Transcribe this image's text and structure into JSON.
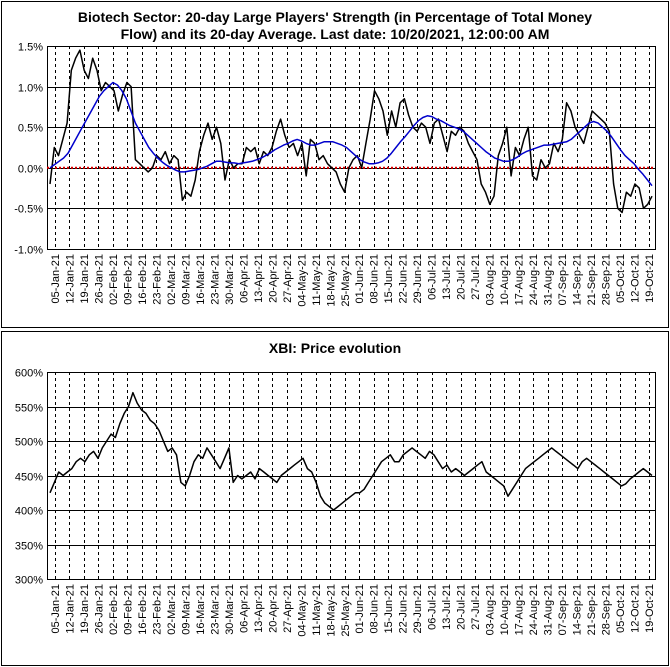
{
  "chart_data": [
    {
      "type": "line",
      "title_line1": "Biotech Sector: 20-day Large Players' Strength (in Percentage of Total Money",
      "title_line2": "Flow) and its 20-day Average. Last date: 10/20/2021, 12:00:00 AM",
      "ylim": [
        -1.0,
        1.5
      ],
      "yticks": [
        -1.0,
        -0.5,
        0.0,
        0.5,
        1.0,
        1.5
      ],
      "ytick_labels": [
        "-1.0%",
        "-0.5%",
        "0.0%",
        "0.5%",
        "1.0%",
        "1.5%"
      ],
      "reference_line": {
        "y": 0.0,
        "color": "#e00000",
        "style": "dotted"
      },
      "x_tick_labels": [
        "05-Jan-21",
        "12-Jan-21",
        "19-Jan-21",
        "26-Jan-21",
        "02-Feb-21",
        "09-Feb-21",
        "16-Feb-21",
        "23-Feb-21",
        "02-Mar-21",
        "09-Mar-21",
        "16-Mar-21",
        "23-Mar-21",
        "30-Mar-21",
        "06-Apr-21",
        "13-Apr-21",
        "20-Apr-21",
        "27-Apr-21",
        "04-May-21",
        "11-May-21",
        "18-May-21",
        "25-May-21",
        "01-Jun-21",
        "08-Jun-21",
        "15-Jun-21",
        "22-Jun-21",
        "29-Jun-21",
        "06-Jul-21",
        "13-Jul-21",
        "20-Jul-21",
        "27-Jul-21",
        "03-Aug-21",
        "10-Aug-21",
        "17-Aug-21",
        "24-Aug-21",
        "31-Aug-21",
        "07-Sep-21",
        "14-Sep-21",
        "21-Sep-21",
        "28-Sep-21",
        "05-Oct-21",
        "12-Oct-21",
        "19-Oct-21"
      ],
      "grid": {
        "horizontal": "solid",
        "vertical": "dashed"
      },
      "series": [
        {
          "color": "#000000",
          "values": [
            -0.2,
            0.25,
            0.15,
            0.35,
            0.55,
            1.2,
            1.35,
            1.45,
            1.2,
            1.1,
            1.35,
            1.2,
            0.95,
            1.05,
            1.0,
            0.95,
            0.7,
            0.9,
            1.05,
            1.0,
            0.1,
            0.05,
            0.0,
            -0.05,
            0.0,
            0.15,
            0.1,
            0.2,
            0.05,
            0.15,
            0.1,
            -0.4,
            -0.3,
            -0.35,
            -0.15,
            0.2,
            0.4,
            0.55,
            0.35,
            0.5,
            0.3,
            -0.15,
            0.1,
            0.0,
            0.05,
            0.05,
            0.25,
            0.2,
            0.25,
            0.05,
            0.2,
            0.15,
            0.25,
            0.45,
            0.6,
            0.4,
            0.25,
            0.3,
            0.15,
            0.3,
            -0.1,
            0.35,
            0.3,
            0.1,
            0.15,
            0.05,
            0.0,
            -0.05,
            -0.2,
            -0.3,
            0.0,
            0.1,
            0.15,
            0.0,
            0.3,
            0.6,
            0.95,
            0.85,
            0.7,
            0.4,
            0.7,
            0.5,
            0.8,
            0.85,
            0.65,
            0.5,
            0.45,
            0.55,
            0.5,
            0.3,
            0.55,
            0.6,
            0.4,
            0.2,
            0.45,
            0.4,
            0.5,
            0.45,
            0.3,
            0.2,
            0.1,
            -0.2,
            -0.3,
            -0.45,
            -0.35,
            0.15,
            0.3,
            0.5,
            -0.1,
            0.25,
            0.15,
            0.35,
            0.5,
            -0.1,
            -0.15,
            0.1,
            0.0,
            0.05,
            0.3,
            0.2,
            0.35,
            0.8,
            0.7,
            0.5,
            0.4,
            0.3,
            0.5,
            0.7,
            0.65,
            0.6,
            0.55,
            0.45,
            -0.2,
            -0.5,
            -0.55,
            -0.3,
            -0.35,
            -0.2,
            -0.25,
            -0.5,
            -0.45,
            -0.35
          ]
        },
        {
          "color": "#0000cc",
          "values": [
            0.0,
            0.04,
            0.08,
            0.12,
            0.18,
            0.28,
            0.38,
            0.48,
            0.58,
            0.68,
            0.78,
            0.88,
            0.95,
            1.0,
            1.05,
            1.02,
            0.95,
            0.85,
            0.7,
            0.55,
            0.45,
            0.35,
            0.25,
            0.18,
            0.12,
            0.07,
            0.03,
            0.0,
            -0.03,
            -0.05,
            -0.05,
            -0.04,
            -0.03,
            -0.02,
            0.0,
            0.02,
            0.05,
            0.08,
            0.08,
            0.07,
            0.06,
            0.06,
            0.05,
            0.06,
            0.07,
            0.08,
            0.1,
            0.12,
            0.15,
            0.18,
            0.22,
            0.25,
            0.28,
            0.3,
            0.33,
            0.35,
            0.33,
            0.3,
            0.28,
            0.28,
            0.3,
            0.32,
            0.32,
            0.32,
            0.3,
            0.28,
            0.25,
            0.2,
            0.15,
            0.1,
            0.07,
            0.05,
            0.05,
            0.06,
            0.08,
            0.12,
            0.18,
            0.25,
            0.32,
            0.38,
            0.45,
            0.52,
            0.58,
            0.62,
            0.64,
            0.63,
            0.6,
            0.58,
            0.55,
            0.52,
            0.5,
            0.48,
            0.45,
            0.4,
            0.35,
            0.3,
            0.25,
            0.2,
            0.16,
            0.12,
            0.1,
            0.08,
            0.08,
            0.1,
            0.13,
            0.17,
            0.2,
            0.22,
            0.24,
            0.26,
            0.28,
            0.28,
            0.29,
            0.3,
            0.31,
            0.32,
            0.35,
            0.4,
            0.45,
            0.5,
            0.55,
            0.57,
            0.55,
            0.5,
            0.45,
            0.38,
            0.3,
            0.22,
            0.15,
            0.1,
            0.05,
            -0.02,
            -0.08,
            -0.15,
            -0.22
          ]
        }
      ]
    },
    {
      "type": "line",
      "title": "XBI: Price evolution",
      "ylim": [
        300,
        600
      ],
      "yticks": [
        300,
        350,
        400,
        450,
        500,
        550,
        600
      ],
      "ytick_labels": [
        "300%",
        "350%",
        "400%",
        "450%",
        "500%",
        "550%",
        "600%"
      ],
      "x_tick_labels": [
        "05-Jan-21",
        "12-Jan-21",
        "19-Jan-21",
        "26-Jan-21",
        "02-Feb-21",
        "09-Feb-21",
        "16-Feb-21",
        "23-Feb-21",
        "02-Mar-21",
        "09-Mar-21",
        "16-Mar-21",
        "23-Mar-21",
        "30-Mar-21",
        "06-Apr-21",
        "13-Apr-21",
        "20-Apr-21",
        "27-Apr-21",
        "04-May-21",
        "11-May-21",
        "18-May-21",
        "25-May-21",
        "01-Jun-21",
        "08-Jun-21",
        "15-Jun-21",
        "22-Jun-21",
        "29-Jun-21",
        "06-Jul-21",
        "13-Jul-21",
        "20-Jul-21",
        "27-Jul-21",
        "03-Aug-21",
        "10-Aug-21",
        "17-Aug-21",
        "24-Aug-21",
        "31-Aug-21",
        "07-Sep-21",
        "14-Sep-21",
        "21-Sep-21",
        "28-Sep-21",
        "05-Oct-21",
        "12-Oct-21",
        "19-Oct-21"
      ],
      "grid": {
        "horizontal": "solid",
        "vertical": "dashed"
      },
      "series": [
        {
          "color": "#000000",
          "values": [
            425,
            440,
            455,
            450,
            455,
            460,
            470,
            475,
            470,
            480,
            485,
            475,
            490,
            500,
            510,
            505,
            525,
            540,
            550,
            570,
            555,
            545,
            540,
            530,
            525,
            515,
            500,
            485,
            490,
            480,
            440,
            435,
            450,
            470,
            480,
            475,
            490,
            480,
            470,
            460,
            475,
            490,
            440,
            450,
            445,
            450,
            455,
            445,
            460,
            455,
            450,
            445,
            440,
            450,
            455,
            460,
            465,
            470,
            475,
            460,
            455,
            440,
            420,
            410,
            405,
            400,
            405,
            410,
            415,
            420,
            425,
            425,
            430,
            440,
            450,
            460,
            470,
            475,
            480,
            470,
            470,
            480,
            485,
            490,
            485,
            480,
            475,
            485,
            480,
            470,
            460,
            465,
            455,
            460,
            455,
            450,
            455,
            460,
            465,
            470,
            455,
            450,
            445,
            440,
            435,
            420,
            430,
            440,
            450,
            460,
            465,
            470,
            475,
            480,
            485,
            490,
            485,
            480,
            475,
            470,
            465,
            460,
            470,
            475,
            470,
            465,
            460,
            455,
            450,
            445,
            440,
            435,
            438,
            445,
            450,
            455,
            460,
            455,
            450
          ]
        }
      ]
    }
  ]
}
